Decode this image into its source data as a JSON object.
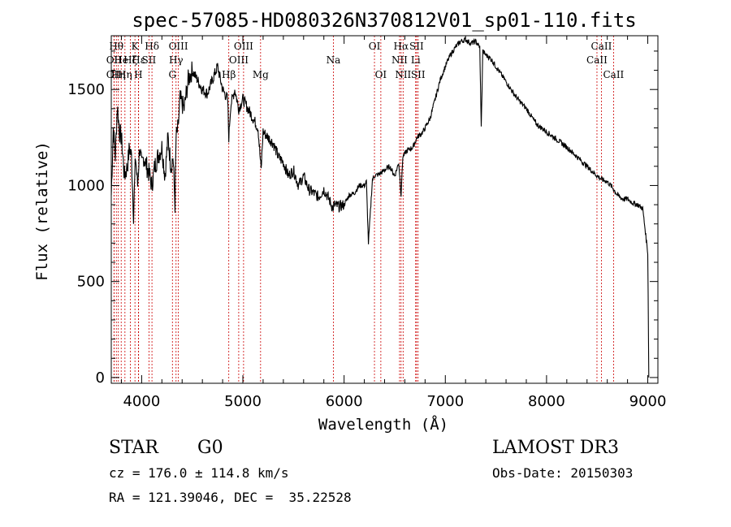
{
  "chart_data": {
    "type": "line",
    "title": "spec-57085-HD080326N370812V01_sp01-110.fits",
    "xlabel": "Wavelength (Å)",
    "ylabel": "Flux (relative)",
    "xlim": [
      3700,
      9100
    ],
    "ylim": [
      -30,
      1780
    ],
    "xticks": [
      4000,
      5000,
      6000,
      7000,
      8000,
      9000
    ],
    "yticks": [
      0,
      500,
      1000,
      1500
    ],
    "series": [
      {
        "name": "flux",
        "x": [
          3700,
          3720,
          3740,
          3760,
          3780,
          3800,
          3830,
          3860,
          3880,
          3900,
          3920,
          3940,
          3960,
          3980,
          4000,
          4020,
          4050,
          4080,
          4100,
          4130,
          4160,
          4200,
          4230,
          4260,
          4290,
          4310,
          4330,
          4340,
          4360,
          4380,
          4420,
          4460,
          4500,
          4550,
          4600,
          4650,
          4700,
          4750,
          4800,
          4850,
          4861,
          4880,
          4920,
          4960,
          5000,
          5050,
          5100,
          5150,
          5180,
          5200,
          5250,
          5300,
          5350,
          5400,
          5450,
          5500,
          5550,
          5600,
          5650,
          5700,
          5750,
          5800,
          5850,
          5890,
          5900,
          5950,
          6000,
          6050,
          6100,
          6150,
          6200,
          6220,
          6240,
          6280,
          6300,
          6350,
          6400,
          6450,
          6500,
          6540,
          6563,
          6580,
          6620,
          6680,
          6720,
          6780,
          6850,
          6900,
          6950,
          7000,
          7050,
          7100,
          7150,
          7200,
          7250,
          7300,
          7340,
          7355,
          7370,
          7400,
          7450,
          7500,
          7550,
          7600,
          7700,
          7800,
          7900,
          8000,
          8100,
          8200,
          8300,
          8400,
          8500,
          8550,
          8600,
          8650,
          8700,
          8750,
          8800,
          8850,
          8900,
          8950,
          9000,
          9010
        ],
        "values": [
          950,
          1300,
          1150,
          1420,
          1280,
          1250,
          1050,
          1100,
          1200,
          1150,
          850,
          1150,
          1000,
          1200,
          1100,
          1150,
          1100,
          1050,
          1000,
          1100,
          1150,
          1200,
          1050,
          1250,
          1100,
          1150,
          900,
          1250,
          1300,
          1450,
          1400,
          1550,
          1600,
          1550,
          1500,
          1480,
          1550,
          1620,
          1500,
          1450,
          1250,
          1420,
          1500,
          1400,
          1450,
          1400,
          1350,
          1300,
          1080,
          1280,
          1250,
          1220,
          1150,
          1120,
          1050,
          1080,
          1000,
          1050,
          980,
          960,
          940,
          980,
          930,
          880,
          900,
          890,
          900,
          950,
          960,
          1000,
          1000,
          1020,
          700,
          1030,
          1050,
          1060,
          1080,
          1100,
          1050,
          1120,
          950,
          1150,
          1180,
          1200,
          1250,
          1280,
          1350,
          1450,
          1550,
          1620,
          1680,
          1720,
          1750,
          1760,
          1740,
          1750,
          1720,
          1300,
          1700,
          1680,
          1660,
          1620,
          1580,
          1540,
          1460,
          1400,
          1320,
          1280,
          1240,
          1200,
          1150,
          1100,
          1050,
          1030,
          1020,
          990,
          950,
          930,
          930,
          910,
          900,
          880,
          650,
          0
        ]
      }
    ],
    "line_markers": [
      {
        "wavelength": 3727,
        "label": "OII",
        "row": 2
      },
      {
        "wavelength": 3727,
        "label": "OII",
        "row": 3
      },
      {
        "wavelength": 3750,
        "label": "Hθ",
        "row": 1
      },
      {
        "wavelength": 3770,
        "label": "Hη",
        "row": 3
      },
      {
        "wavelength": 3798,
        "label": "He",
        "row": 2
      },
      {
        "wavelength": 3835,
        "label": "Hη",
        "row": 3
      },
      {
        "wavelength": 3889,
        "label": "Hζ",
        "row": 2
      },
      {
        "wavelength": 3934,
        "label": "K",
        "row": 1
      },
      {
        "wavelength": 3968,
        "label": "H",
        "row": 3
      },
      {
        "wavelength": 3970,
        "label": "Hε",
        "row": 2
      },
      {
        "wavelength": 4072,
        "label": "SII",
        "row": 2
      },
      {
        "wavelength": 4102,
        "label": "Hδ",
        "row": 1
      },
      {
        "wavelength": 4304,
        "label": "G",
        "row": 3
      },
      {
        "wavelength": 4340,
        "label": "Hγ",
        "row": 2
      },
      {
        "wavelength": 4363,
        "label": "OIII",
        "row": 1
      },
      {
        "wavelength": 4861,
        "label": "Hβ",
        "row": 3
      },
      {
        "wavelength": 4959,
        "label": "OIII",
        "row": 2
      },
      {
        "wavelength": 5007,
        "label": "OIII",
        "row": 1
      },
      {
        "wavelength": 5175,
        "label": "Mg",
        "row": 3
      },
      {
        "wavelength": 5894,
        "label": "Na",
        "row": 2
      },
      {
        "wavelength": 6300,
        "label": "OI",
        "row": 1
      },
      {
        "wavelength": 6363,
        "label": "OI",
        "row": 3
      },
      {
        "wavelength": 6548,
        "label": "NII",
        "row": 2
      },
      {
        "wavelength": 6563,
        "label": "Hα",
        "row": 1
      },
      {
        "wavelength": 6583,
        "label": "NII",
        "row": 3
      },
      {
        "wavelength": 6707,
        "label": "Li",
        "row": 2
      },
      {
        "wavelength": 6716,
        "label": "SII",
        "row": 1
      },
      {
        "wavelength": 6731,
        "label": "SII",
        "row": 3
      },
      {
        "wavelength": 8498,
        "label": "CaII",
        "row": 2
      },
      {
        "wavelength": 8542,
        "label": "CaII",
        "row": 1
      },
      {
        "wavelength": 8662,
        "label": "CaII",
        "row": 3
      }
    ],
    "colors": {
      "spectrum": "#000000",
      "marker": "#cc0000",
      "axes": "#000000"
    }
  },
  "info": {
    "object_class": "STAR",
    "subclass": "G0",
    "survey": "LAMOST DR3",
    "cz": "cz = 176.0 ± 114.8 km/s",
    "obs_date": "Obs-Date: 20150303",
    "coords": "RA = 121.39046, DEC =  35.22528"
  }
}
